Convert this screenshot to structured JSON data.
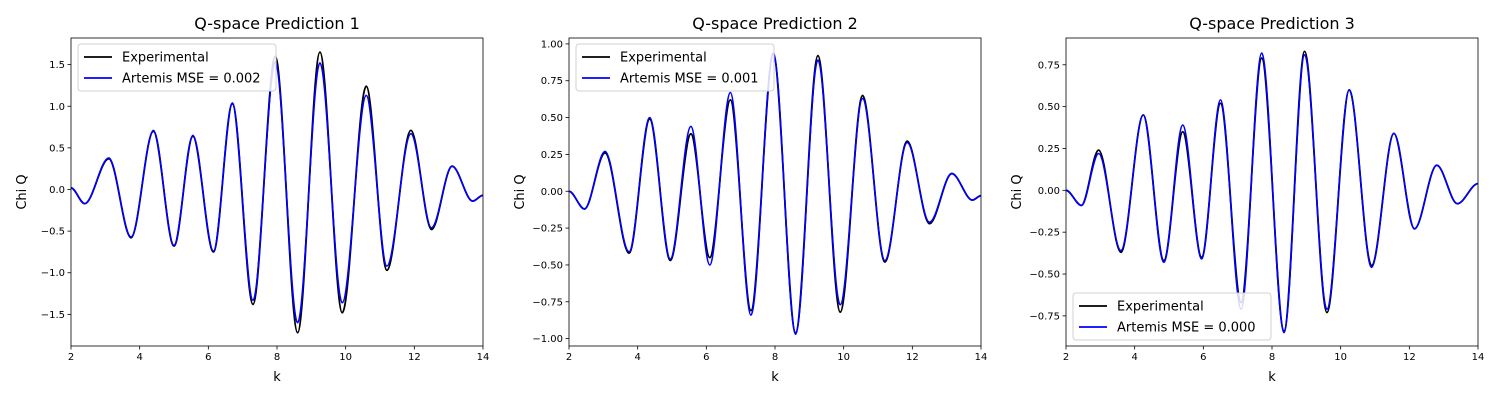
{
  "figure": {
    "background": "#ffffff"
  },
  "chart_data": [
    {
      "type": "line",
      "title": "Q-space Prediction 1",
      "xlabel": "k",
      "ylabel": "Chi Q",
      "xlim": [
        2,
        14
      ],
      "ylim": [
        -1.88,
        1.82
      ],
      "xticks": [
        2,
        4,
        6,
        8,
        10,
        12,
        14
      ],
      "yticks": [
        -1.5,
        -1.0,
        -0.5,
        0.0,
        0.5,
        1.0,
        1.5
      ],
      "ytick_labels": [
        "−1.5",
        "−1.0",
        "−0.5",
        "0.0",
        "0.5",
        "1.0",
        "1.5"
      ],
      "legend_position": "upper-left",
      "series": [
        {
          "name": "Experimental",
          "color": "#000000",
          "x": [
            2.0,
            2.4,
            3.1,
            3.75,
            4.4,
            5.0,
            5.55,
            6.15,
            6.7,
            7.3,
            7.95,
            8.6,
            9.25,
            9.9,
            10.6,
            11.2,
            11.9,
            12.5,
            13.1,
            13.7,
            14.0
          ],
          "y": [
            0.02,
            -0.17,
            0.37,
            -0.58,
            0.7,
            -0.68,
            0.64,
            -0.75,
            1.03,
            -1.38,
            1.6,
            -1.72,
            1.65,
            -1.48,
            1.24,
            -0.97,
            0.71,
            -0.48,
            0.28,
            -0.14,
            -0.07
          ]
        },
        {
          "name": "Artemis MSE = 0.002",
          "color": "#0000ff",
          "x": [
            2.0,
            2.4,
            3.1,
            3.75,
            4.4,
            5.0,
            5.55,
            6.15,
            6.7,
            7.3,
            7.95,
            8.6,
            9.25,
            9.9,
            10.6,
            11.2,
            11.9,
            12.5,
            13.1,
            13.7,
            14.0
          ],
          "y": [
            0.02,
            -0.17,
            0.38,
            -0.57,
            0.71,
            -0.67,
            0.65,
            -0.74,
            1.04,
            -1.33,
            1.53,
            -1.6,
            1.52,
            -1.36,
            1.13,
            -0.92,
            0.67,
            -0.46,
            0.28,
            -0.14,
            -0.07
          ]
        }
      ]
    },
    {
      "type": "line",
      "title": "Q-space Prediction 2",
      "xlabel": "k",
      "ylabel": "Chi Q",
      "xlim": [
        2,
        14
      ],
      "ylim": [
        -1.05,
        1.04
      ],
      "xticks": [
        2,
        4,
        6,
        8,
        10,
        12,
        14
      ],
      "yticks": [
        -1.0,
        -0.75,
        -0.5,
        -0.25,
        0.0,
        0.25,
        0.5,
        0.75,
        1.0
      ],
      "ytick_labels": [
        "−1.00",
        "−0.75",
        "−0.50",
        "−0.25",
        "0.00",
        "0.25",
        "0.50",
        "0.75",
        "1.00"
      ],
      "legend_position": "upper-left",
      "series": [
        {
          "name": "Experimental",
          "color": "#000000",
          "x": [
            2.0,
            2.45,
            3.05,
            3.75,
            4.35,
            4.95,
            5.55,
            6.1,
            6.7,
            7.3,
            7.95,
            8.6,
            9.25,
            9.9,
            10.55,
            11.2,
            11.85,
            12.5,
            13.15,
            13.75,
            14.0
          ],
          "y": [
            0.0,
            -0.12,
            0.26,
            -0.42,
            0.49,
            -0.47,
            0.39,
            -0.45,
            0.62,
            -0.81,
            0.93,
            -0.96,
            0.92,
            -0.82,
            0.65,
            -0.48,
            0.34,
            -0.22,
            0.12,
            -0.06,
            -0.03
          ]
        },
        {
          "name": "Artemis MSE = 0.001",
          "color": "#0000ff",
          "x": [
            2.0,
            2.45,
            3.05,
            3.75,
            4.35,
            4.95,
            5.55,
            6.1,
            6.7,
            7.3,
            7.95,
            8.6,
            9.25,
            9.9,
            10.55,
            11.2,
            11.85,
            12.5,
            13.15,
            13.75,
            14.0
          ],
          "y": [
            0.0,
            -0.12,
            0.27,
            -0.41,
            0.5,
            -0.46,
            0.44,
            -0.5,
            0.67,
            -0.84,
            0.94,
            -0.97,
            0.89,
            -0.77,
            0.63,
            -0.47,
            0.33,
            -0.21,
            0.12,
            -0.06,
            -0.03
          ]
        }
      ]
    },
    {
      "type": "line",
      "title": "Q-space Prediction 3",
      "xlabel": "k",
      "ylabel": "Chi Q",
      "xlim": [
        2,
        14
      ],
      "ylim": [
        -0.93,
        0.91
      ],
      "xticks": [
        2,
        4,
        6,
        8,
        10,
        12,
        14
      ],
      "yticks": [
        -0.75,
        -0.5,
        -0.25,
        0.0,
        0.25,
        0.5,
        0.75
      ],
      "ytick_labels": [
        "−0.75",
        "−0.50",
        "−0.25",
        "0.00",
        "0.25",
        "0.50",
        "0.75"
      ],
      "legend_position": "lower-left",
      "series": [
        {
          "name": "Experimental",
          "color": "#000000",
          "x": [
            2.0,
            2.45,
            2.95,
            3.6,
            4.25,
            4.85,
            5.4,
            5.95,
            6.5,
            7.1,
            7.7,
            8.35,
            8.95,
            9.6,
            10.25,
            10.9,
            11.55,
            12.15,
            12.8,
            13.4,
            14.0
          ],
          "y": [
            0.0,
            -0.09,
            0.24,
            -0.37,
            0.45,
            -0.42,
            0.35,
            -0.4,
            0.52,
            -0.67,
            0.79,
            -0.84,
            0.83,
            -0.73,
            0.6,
            -0.45,
            0.34,
            -0.23,
            0.15,
            -0.08,
            0.04
          ]
        },
        {
          "name": "Artemis MSE = 0.000",
          "color": "#0000ff",
          "x": [
            2.0,
            2.45,
            2.95,
            3.6,
            4.25,
            4.85,
            5.4,
            5.95,
            6.5,
            7.1,
            7.7,
            8.35,
            8.95,
            9.6,
            10.25,
            10.9,
            11.55,
            12.15,
            12.8,
            13.4,
            14.0
          ],
          "y": [
            0.0,
            -0.09,
            0.22,
            -0.36,
            0.45,
            -0.43,
            0.39,
            -0.41,
            0.54,
            -0.71,
            0.82,
            -0.85,
            0.81,
            -0.71,
            0.6,
            -0.46,
            0.34,
            -0.23,
            0.15,
            -0.08,
            0.04
          ]
        }
      ]
    }
  ]
}
